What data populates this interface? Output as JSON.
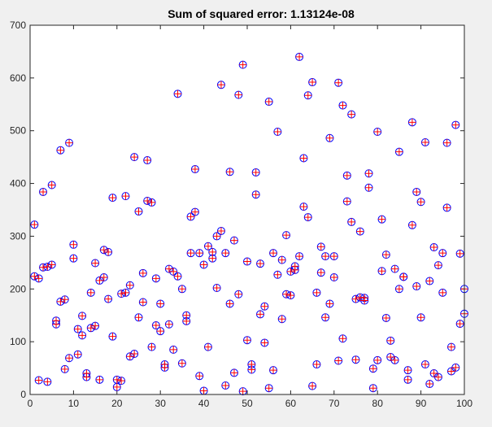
{
  "chart_data": {
    "type": "scatter",
    "title": "Sum of squared error: 1.13124e-08",
    "xlabel": "",
    "ylabel": "",
    "xlim": [
      0,
      100
    ],
    "ylim": [
      0,
      700
    ],
    "xticks": [
      0,
      10,
      20,
      30,
      40,
      50,
      60,
      70,
      80,
      90,
      100
    ],
    "yticks": [
      0,
      100,
      200,
      300,
      400,
      500,
      600,
      700
    ],
    "grid": false,
    "legend": "none",
    "series": [
      {
        "marker": "circle",
        "color": "#0000ff",
        "points": [
          [
            1,
            322
          ],
          [
            1,
            224
          ],
          [
            2,
            220
          ],
          [
            2,
            27
          ],
          [
            3,
            384
          ],
          [
            3,
            241
          ],
          [
            4,
            24
          ],
          [
            4,
            242
          ],
          [
            5,
            397
          ],
          [
            5,
            246
          ],
          [
            6,
            140
          ],
          [
            6,
            133
          ],
          [
            7,
            463
          ],
          [
            7,
            176
          ],
          [
            8,
            180
          ],
          [
            8,
            48
          ],
          [
            9,
            477
          ],
          [
            9,
            69
          ],
          [
            10,
            284
          ],
          [
            10,
            258
          ],
          [
            11,
            124
          ],
          [
            11,
            76
          ],
          [
            12,
            149
          ],
          [
            12,
            112
          ],
          [
            13,
            40
          ],
          [
            13,
            33
          ],
          [
            14,
            193
          ],
          [
            14,
            126
          ],
          [
            15,
            249
          ],
          [
            15,
            130
          ],
          [
            16,
            216
          ],
          [
            16,
            28
          ],
          [
            17,
            274
          ],
          [
            17,
            222
          ],
          [
            18,
            270
          ],
          [
            18,
            181
          ],
          [
            19,
            373
          ],
          [
            19,
            110
          ],
          [
            20,
            28
          ],
          [
            20,
            14
          ],
          [
            21,
            191
          ],
          [
            21,
            26
          ],
          [
            22,
            376
          ],
          [
            22,
            193
          ],
          [
            23,
            207
          ],
          [
            23,
            72
          ],
          [
            24,
            450
          ],
          [
            24,
            77
          ],
          [
            25,
            347
          ],
          [
            25,
            146
          ],
          [
            26,
            230
          ],
          [
            26,
            175
          ],
          [
            27,
            444
          ],
          [
            27,
            367
          ],
          [
            28,
            364
          ],
          [
            28,
            90
          ],
          [
            29,
            220
          ],
          [
            29,
            131
          ],
          [
            30,
            172
          ],
          [
            30,
            120
          ],
          [
            31,
            57
          ],
          [
            31,
            51
          ],
          [
            32,
            238
          ],
          [
            32,
            133
          ],
          [
            33,
            233
          ],
          [
            33,
            85
          ],
          [
            34,
            570
          ],
          [
            34,
            224
          ],
          [
            35,
            200
          ],
          [
            35,
            59
          ],
          [
            36,
            150
          ],
          [
            36,
            139
          ],
          [
            37,
            337
          ],
          [
            37,
            268
          ],
          [
            38,
            427
          ],
          [
            38,
            346
          ],
          [
            39,
            268
          ],
          [
            39,
            35
          ],
          [
            40,
            246
          ],
          [
            40,
            7
          ],
          [
            41,
            281
          ],
          [
            41,
            90
          ],
          [
            42,
            270
          ],
          [
            42,
            258
          ],
          [
            43,
            300
          ],
          [
            43,
            202
          ],
          [
            44,
            587
          ],
          [
            44,
            310
          ],
          [
            45,
            268
          ],
          [
            45,
            17
          ],
          [
            46,
            422
          ],
          [
            46,
            172
          ],
          [
            47,
            292
          ],
          [
            47,
            41
          ],
          [
            48,
            568
          ],
          [
            48,
            190
          ],
          [
            49,
            625
          ],
          [
            49,
            6
          ],
          [
            50,
            252
          ],
          [
            50,
            103
          ],
          [
            51,
            57
          ],
          [
            51,
            47
          ],
          [
            52,
            421
          ],
          [
            52,
            379
          ],
          [
            53,
            248
          ],
          [
            53,
            152
          ],
          [
            54,
            167
          ],
          [
            54,
            98
          ],
          [
            55,
            555
          ],
          [
            55,
            12
          ],
          [
            56,
            268
          ],
          [
            56,
            46
          ],
          [
            57,
            498
          ],
          [
            57,
            227
          ],
          [
            58,
            255
          ],
          [
            58,
            143
          ],
          [
            59,
            302
          ],
          [
            59,
            190
          ],
          [
            60,
            233
          ],
          [
            60,
            188
          ],
          [
            61,
            243
          ],
          [
            61,
            236
          ],
          [
            62,
            640
          ],
          [
            62,
            262
          ],
          [
            63,
            448
          ],
          [
            63,
            356
          ],
          [
            64,
            567
          ],
          [
            64,
            336
          ],
          [
            65,
            592
          ],
          [
            65,
            16
          ],
          [
            66,
            193
          ],
          [
            66,
            57
          ],
          [
            67,
            280
          ],
          [
            67,
            231
          ],
          [
            68,
            262
          ],
          [
            68,
            146
          ],
          [
            69,
            486
          ],
          [
            69,
            172
          ],
          [
            70,
            262
          ],
          [
            70,
            222
          ],
          [
            71,
            591
          ],
          [
            71,
            64
          ],
          [
            72,
            548
          ],
          [
            72,
            106
          ],
          [
            73,
            415
          ],
          [
            73,
            366
          ],
          [
            74,
            531
          ],
          [
            74,
            327
          ],
          [
            75,
            181
          ],
          [
            75,
            66
          ],
          [
            76,
            309
          ],
          [
            76,
            184
          ],
          [
            77,
            183
          ],
          [
            77,
            178
          ],
          [
            78,
            419
          ],
          [
            78,
            392
          ],
          [
            79,
            49
          ],
          [
            79,
            12
          ],
          [
            80,
            498
          ],
          [
            80,
            65
          ],
          [
            81,
            332
          ],
          [
            81,
            234
          ],
          [
            82,
            265
          ],
          [
            82,
            145
          ],
          [
            83,
            102
          ],
          [
            83,
            71
          ],
          [
            84,
            238
          ],
          [
            84,
            65
          ],
          [
            85,
            460
          ],
          [
            85,
            200
          ],
          [
            86,
            223
          ],
          [
            86,
            223
          ],
          [
            87,
            46
          ],
          [
            87,
            28
          ],
          [
            88,
            516
          ],
          [
            88,
            321
          ],
          [
            89,
            384
          ],
          [
            89,
            205
          ],
          [
            90,
            365
          ],
          [
            90,
            146
          ],
          [
            91,
            478
          ],
          [
            91,
            57
          ],
          [
            92,
            215
          ],
          [
            92,
            20
          ],
          [
            93,
            279
          ],
          [
            93,
            40
          ],
          [
            94,
            245
          ],
          [
            94,
            33
          ],
          [
            95,
            268
          ],
          [
            95,
            193
          ],
          [
            96,
            477
          ],
          [
            96,
            354
          ],
          [
            97,
            90
          ],
          [
            97,
            44
          ],
          [
            98,
            511
          ],
          [
            98,
            51
          ],
          [
            99,
            267
          ],
          [
            99,
            134
          ],
          [
            100,
            200
          ],
          [
            100,
            153
          ]
        ]
      },
      {
        "marker": "plus",
        "color": "#ff0000",
        "points_same_as_series": 0
      }
    ]
  }
}
